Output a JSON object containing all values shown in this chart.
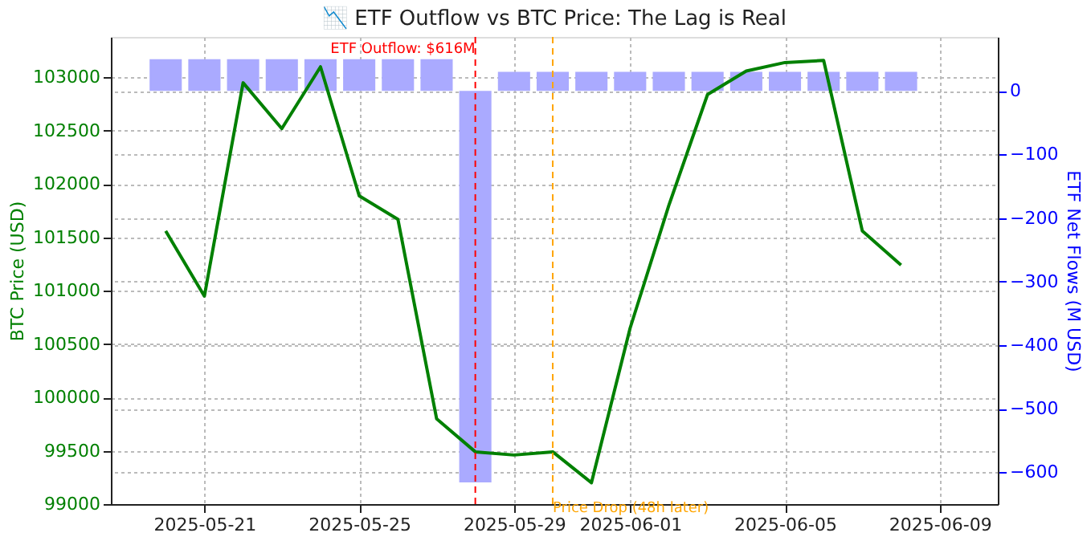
{
  "chart_data": {
    "type": "line",
    "title": "📉 ETF Outflow vs BTC Price: The Lag is Real",
    "ylabel": "BTC Price (USD)",
    "y2label": "ETF Net Flows (M USD)",
    "x": [
      "2025-05-20",
      "2025-05-21",
      "2025-05-22",
      "2025-05-23",
      "2025-05-24",
      "2025-05-25",
      "2025-05-26",
      "2025-05-27",
      "2025-05-28",
      "2025-05-29",
      "2025-05-30",
      "2025-05-31",
      "2025-06-01",
      "2025-06-02",
      "2025-06-03",
      "2025-06-04",
      "2025-06-05",
      "2025-06-06",
      "2025-06-07",
      "2025-06-08"
    ],
    "series": [
      {
        "color": "#008000",
        "values": [
          101560,
          100950,
          102950,
          102520,
          103100,
          101890,
          101670,
          99800,
          99490,
          99460,
          99490,
          99200,
          100650,
          101800,
          102840,
          103060,
          103140,
          103160,
          101560,
          101240
        ]
      },
      {
        "type": "bar",
        "axis": "y2",
        "color": "#aaaaff",
        "values": [
          50,
          50,
          50,
          50,
          50,
          50,
          50,
          50,
          -616,
          30,
          30,
          30,
          30,
          30,
          30,
          30,
          30,
          30,
          30,
          30
        ]
      }
    ],
    "xlim": [
      "2025-05-18T14:00",
      "2025-06-10T12:00"
    ],
    "xticks": [
      "2025-05-21",
      "2025-05-25",
      "2025-05-29",
      "2025-06-01",
      "2025-06-05",
      "2025-06-09"
    ],
    "ylim": [
      99000,
      103380
    ],
    "yticks": [
      99000,
      99500,
      100000,
      100500,
      101000,
      101500,
      102000,
      102500,
      103000
    ],
    "y2lim": [
      -650,
      85
    ],
    "y2ticks": [
      -600,
      -500,
      -400,
      -300,
      -200,
      -100,
      0
    ],
    "ref_lines": [
      {
        "axis": "x",
        "value": "2025-05-28",
        "label": "ETF Outflow: $616M",
        "color": "#ff0000",
        "line_style": "dashed"
      },
      {
        "axis": "x",
        "value": "2025-05-30",
        "label": "Price Drop (48h later)",
        "color": "#ffa500",
        "line_style": "dashed"
      }
    ],
    "grid": true
  }
}
